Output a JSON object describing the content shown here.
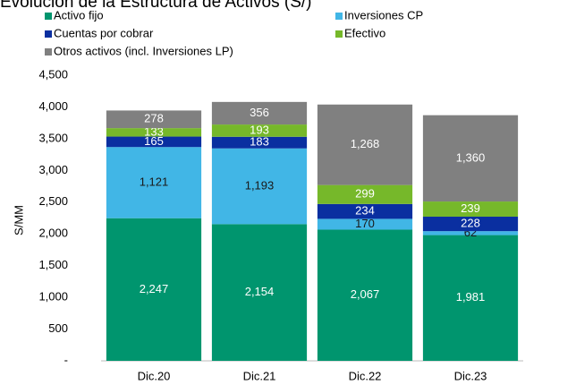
{
  "chart_data": {
    "type": "stacked_bar",
    "title": "Evolución de la Estructura de Activos (S/)",
    "y_label": "S/MM",
    "categories": [
      "Dic.20",
      "Dic.21",
      "Dic.22",
      "Dic.23"
    ],
    "series": [
      {
        "name": "Activo fijo",
        "color": "#00956e",
        "values": [
          2247,
          2154,
          2067,
          1981
        ],
        "value_labels": [
          "2,247",
          "2,154",
          "2,067",
          "1,981"
        ]
      },
      {
        "name": "Inversiones CP",
        "color": "#41b6e6",
        "values": [
          1121,
          1193,
          170,
          62
        ],
        "value_labels": [
          "1,121",
          "1,193",
          "170",
          "62"
        ]
      },
      {
        "name": "Cuentas por cobrar",
        "color": "#0a2fa0",
        "values": [
          165,
          183,
          234,
          228
        ],
        "value_labels": [
          "165",
          "183",
          "234",
          "228"
        ]
      },
      {
        "name": "Efectivo",
        "color": "#76b82a",
        "values": [
          133,
          193,
          299,
          239
        ],
        "value_labels": [
          "133",
          "193",
          "299",
          "239"
        ]
      },
      {
        "name": "Otros activos (incl. Inversiones LP)",
        "color": "#808080",
        "values": [
          278,
          356,
          1268,
          1360
        ],
        "value_labels": [
          "278",
          "356",
          "1,268",
          "1,360"
        ]
      }
    ],
    "ylim": [
      0,
      4500
    ],
    "yticks": [
      {
        "value": 0,
        "label": "-"
      },
      {
        "value": 500,
        "label": "500"
      },
      {
        "value": 1000,
        "label": "1,000"
      },
      {
        "value": 1500,
        "label": "1,500"
      },
      {
        "value": 2000,
        "label": "2,000"
      },
      {
        "value": 2500,
        "label": "2,500"
      },
      {
        "value": 3000,
        "label": "3,000"
      },
      {
        "value": 3500,
        "label": "3,500"
      },
      {
        "value": 4000,
        "label": "4,000"
      },
      {
        "value": 4500,
        "label": "4,500"
      }
    ],
    "grid": false,
    "legend": "top"
  }
}
